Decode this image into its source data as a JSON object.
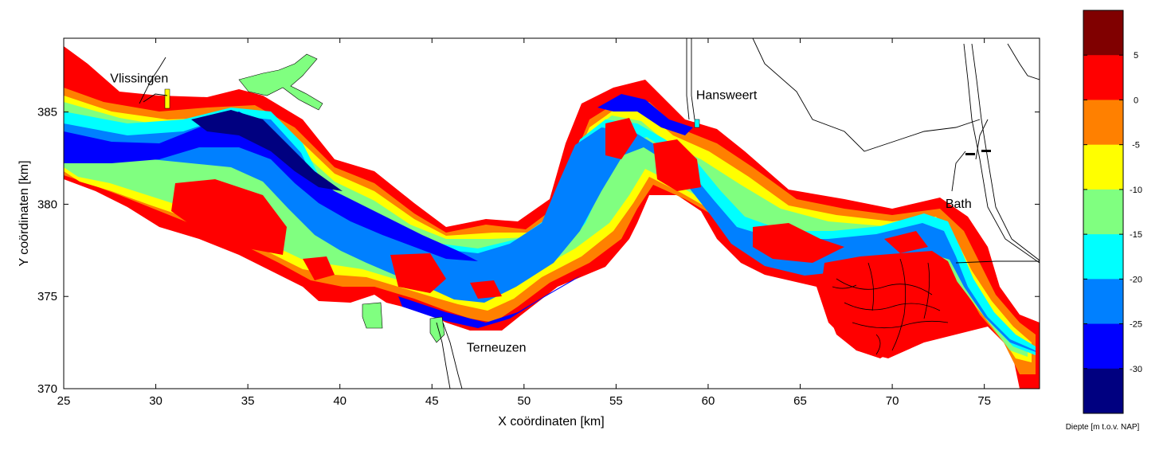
{
  "map": {
    "xlabel": "X coördinaten [km]",
    "ylabel": "Y coördinaten [km]",
    "x_ticks": [
      "25",
      "30",
      "35",
      "40",
      "45",
      "50",
      "55",
      "60",
      "65",
      "70",
      "75"
    ],
    "y_ticks": [
      "370",
      "375",
      "380",
      "385"
    ],
    "xlim": [
      25,
      78
    ],
    "ylim": [
      370,
      389
    ],
    "places": [
      {
        "name": "Vlissingen",
        "x": 29.1,
        "y": 386.6
      },
      {
        "name": "Terneuzen",
        "x": 48.5,
        "y": 372.0
      },
      {
        "name": "Hansweert",
        "x": 61.0,
        "y": 385.7
      },
      {
        "name": "Bath",
        "x": 73.6,
        "y": 379.8
      }
    ]
  },
  "colorbar": {
    "title": "Diepte [m t.o.v. NAP]",
    "ticks": [
      "5",
      "0",
      "-5",
      "-10",
      "-15",
      "-20",
      "-25",
      "-30"
    ],
    "colors": [
      "#800000",
      "#ff0000",
      "#ff8000",
      "#ffff00",
      "#80ff80",
      "#00ffff",
      "#0080ff",
      "#0000ff",
      "#000080"
    ],
    "color_names": [
      "dark-red",
      "red",
      "orange",
      "yellow",
      "light-green",
      "cyan",
      "sky-blue",
      "blue",
      "navy"
    ]
  }
}
